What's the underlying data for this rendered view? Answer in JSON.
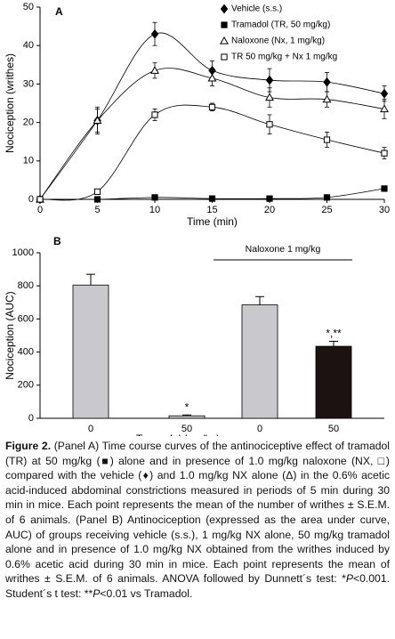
{
  "chart_data": [
    {
      "type": "line",
      "panel": "A",
      "xlabel": "Time (min)",
      "ylabel": "Nociception (writhes)",
      "x": [
        0,
        5,
        10,
        15,
        20,
        25,
        30
      ],
      "xlim": [
        0,
        30
      ],
      "xticks": [
        0,
        5,
        10,
        15,
        20,
        25,
        30
      ],
      "ylim": [
        0,
        50
      ],
      "yticks": [
        0,
        10,
        20,
        30,
        40,
        50
      ],
      "legend": "top-right",
      "series": [
        {
          "name": "Vehicle (s.s.)",
          "color": "#000000",
          "marker": "diamond-filled",
          "values": [
            0,
            20.5,
            43,
            33.5,
            31,
            30.5,
            27.5
          ],
          "errors": [
            0,
            3.5,
            3,
            2.5,
            3,
            2.5,
            2
          ]
        },
        {
          "name": "Tramadol (TR, 50 mg/kg)",
          "color": "#000000",
          "marker": "square-filled",
          "values": [
            0,
            0,
            0.5,
            0.2,
            0.2,
            0.5,
            2.8
          ],
          "errors": [
            0,
            0.3,
            0.4,
            0.3,
            0.3,
            0.4,
            0.6
          ]
        },
        {
          "name": "Naloxone (Nx, 1 mg/kg)",
          "color": "#000000",
          "marker": "triangle-open",
          "values": [
            0,
            20.5,
            33.5,
            31.5,
            26.5,
            26,
            23.5
          ],
          "errors": [
            0,
            3,
            2,
            2,
            2.5,
            2,
            2.5
          ]
        },
        {
          "name": "TR 50 mg/kg + Nx 1 mg/kg",
          "color": "#000000",
          "marker": "square-open",
          "values": [
            0,
            2,
            22,
            24,
            19.5,
            15.5,
            12
          ],
          "errors": [
            0,
            0.5,
            1.5,
            1,
            2.5,
            2,
            1.5
          ]
        }
      ]
    },
    {
      "type": "bar",
      "panel": "B",
      "xlabel": "Tramadol (mg/kg)",
      "ylabel": "Nociception (AUC)",
      "categories": [
        "0",
        "50",
        "0",
        "50"
      ],
      "values": [
        805,
        15,
        685,
        435
      ],
      "errors": [
        65,
        5,
        50,
        30
      ],
      "colors": [
        "#c9c9cd",
        "#c9c9cd",
        "#c9c9cd",
        "#1c1212"
      ],
      "bar_annotations": [
        null,
        "*",
        null,
        "*,**"
      ],
      "group_label": "Naloxone 1 mg/kg",
      "ylim": [
        0,
        1000
      ],
      "yticks": [
        0,
        200,
        400,
        600,
        800,
        1000
      ]
    }
  ],
  "caption": [
    {
      "text": "Figure 2.",
      "bold": true
    },
    {
      "text": " (Panel A) Time course curves of the antinociceptive effect of tramadol (TR) at 50 mg/kg (■) alone and in presence of 1.0 mg/kg naloxone (NX, □) compared with the vehicle (♦) and 1.0 mg/kg NX alone (Δ) in the 0.6% acetic acid-induced abdominal constrictions measured in periods of 5 min during 30 min in mice. Each point represents the mean of the number of writhes ± S.E.M. of 6 animals. (Panel B) Antinociception (expressed as the area under curve, AUC) of groups receiving vehicle (s.s.), 1 mg/kg NX alone, 50 mg/kg tramadol alone and in presence of 1.0 mg/kg NX obtained from the writhes induced by 0.6% acetic acid during 30 min in mice. Each point represents the mean of writhes ± S.E.M. of 6 animals. ANOVA followed by Dunnett´s test: *"
    },
    {
      "text": "P",
      "italic": true
    },
    {
      "text": "<0.001. Student´s t test: **"
    },
    {
      "text": "P",
      "italic": true
    },
    {
      "text": "<0.01 vs Tramadol."
    }
  ]
}
